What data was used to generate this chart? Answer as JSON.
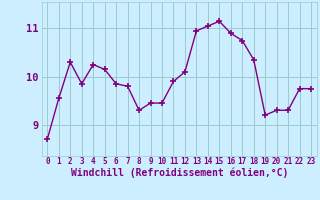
{
  "x": [
    0,
    1,
    2,
    3,
    4,
    5,
    6,
    7,
    8,
    9,
    10,
    11,
    12,
    13,
    14,
    15,
    16,
    17,
    18,
    19,
    20,
    21,
    22,
    23
  ],
  "y": [
    8.7,
    9.55,
    10.3,
    9.85,
    10.25,
    10.15,
    9.85,
    9.8,
    9.3,
    9.45,
    9.45,
    9.9,
    10.1,
    10.95,
    11.05,
    11.15,
    10.9,
    10.75,
    10.35,
    9.2,
    9.3,
    9.3,
    9.75,
    9.75
  ],
  "line_color": "#800080",
  "marker": "+",
  "marker_size": 4,
  "marker_lw": 1.2,
  "line_width": 1.0,
  "bg_color": "#cceeff",
  "grid_color": "#99cccc",
  "xlabel": "Windchill (Refroidissement éolien,°C)",
  "xlabel_color": "#800080",
  "xlabel_fontsize": 7.0,
  "ytick_values": [
    9,
    10,
    11
  ],
  "ytick_fontsize": 7.5,
  "xtick_fontsize": 5.5,
  "tick_color": "#800080",
  "ylim": [
    8.35,
    11.55
  ],
  "xlim": [
    -0.5,
    23.5
  ]
}
